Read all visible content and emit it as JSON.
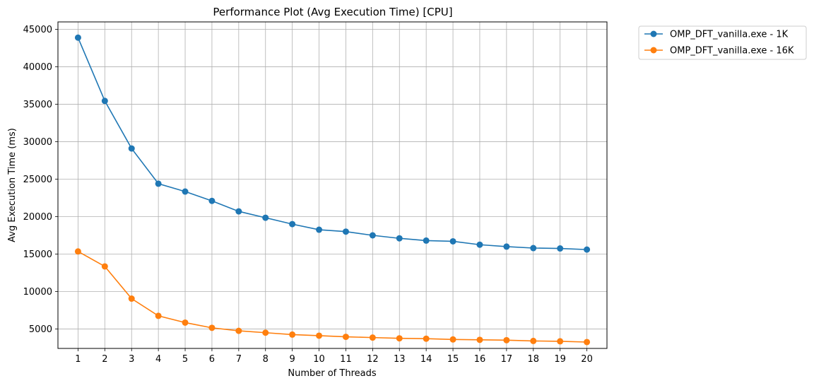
{
  "chart_data": {
    "type": "line",
    "title": "Performance Plot (Avg Execution Time) [CPU]",
    "xlabel": "Number of Threads",
    "ylabel": "Avg Execution Time (ms)",
    "x": [
      1,
      2,
      3,
      4,
      5,
      6,
      7,
      8,
      9,
      10,
      11,
      12,
      13,
      14,
      15,
      16,
      17,
      18,
      19,
      20
    ],
    "xlim": [
      0.25,
      20.75
    ],
    "ylim": [
      2400,
      46000
    ],
    "yticks": [
      5000,
      10000,
      15000,
      20000,
      25000,
      30000,
      35000,
      40000,
      45000
    ],
    "grid": true,
    "legend_position": "outside-top-right",
    "series": [
      {
        "name": "OMP_DFT_vanilla.exe - 1K",
        "color": "#1f77b4",
        "marker": "circle",
        "values": [
          43900,
          35450,
          29100,
          24400,
          23350,
          22100,
          20700,
          19850,
          19000,
          18250,
          18000,
          17500,
          17100,
          16800,
          16700,
          16250,
          16000,
          15800,
          15750,
          15600
        ]
      },
      {
        "name": "OMP_DFT_vanilla.exe - 16K",
        "color": "#ff7f0e",
        "marker": "circle",
        "values": [
          15350,
          13350,
          9050,
          6750,
          5850,
          5150,
          4750,
          4500,
          4250,
          4100,
          3950,
          3850,
          3750,
          3700,
          3600,
          3550,
          3500,
          3400,
          3350,
          3250
        ]
      }
    ]
  }
}
